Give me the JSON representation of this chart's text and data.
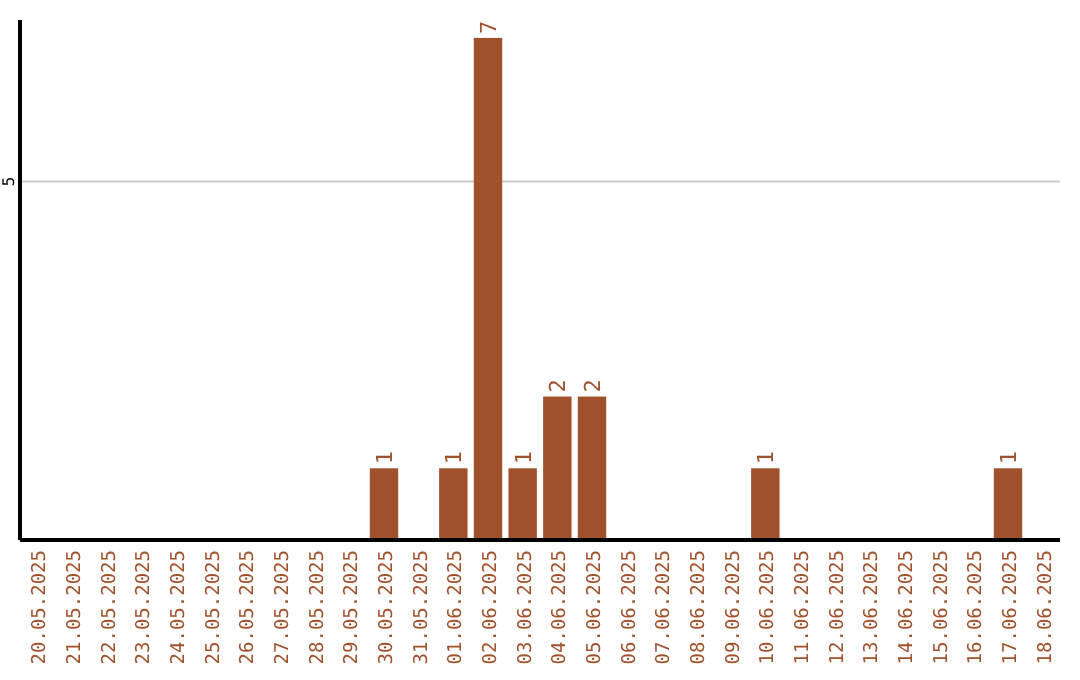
{
  "chart_data": {
    "type": "bar",
    "categories": [
      "20.05.2025",
      "21.05.2025",
      "22.05.2025",
      "23.05.2025",
      "24.05.2025",
      "25.05.2025",
      "26.05.2025",
      "27.05.2025",
      "28.05.2025",
      "29.05.2025",
      "30.05.2025",
      "31.05.2025",
      "01.06.2025",
      "02.06.2025",
      "03.06.2025",
      "04.06.2025",
      "05.06.2025",
      "06.06.2025",
      "07.06.2025",
      "08.06.2025",
      "09.06.2025",
      "10.06.2025",
      "11.06.2025",
      "12.06.2025",
      "13.06.2025",
      "14.06.2025",
      "15.06.2025",
      "16.06.2025",
      "17.06.2025",
      "18.06.2025"
    ],
    "values": [
      0,
      0,
      0,
      0,
      0,
      0,
      0,
      0,
      0,
      0,
      1,
      0,
      1,
      7,
      1,
      2,
      2,
      0,
      0,
      0,
      0,
      1,
      0,
      0,
      0,
      0,
      0,
      0,
      1,
      0
    ],
    "value_labels": [
      null,
      null,
      null,
      null,
      null,
      null,
      null,
      null,
      null,
      null,
      "1",
      null,
      "1",
      "7",
      "1",
      "2",
      "2",
      null,
      null,
      null,
      null,
      "1",
      null,
      null,
      null,
      null,
      null,
      null,
      "1",
      null
    ],
    "color": "#a0522d",
    "ylim": [
      0,
      7.25
    ],
    "yticks": [
      5
    ],
    "grid": "y"
  }
}
